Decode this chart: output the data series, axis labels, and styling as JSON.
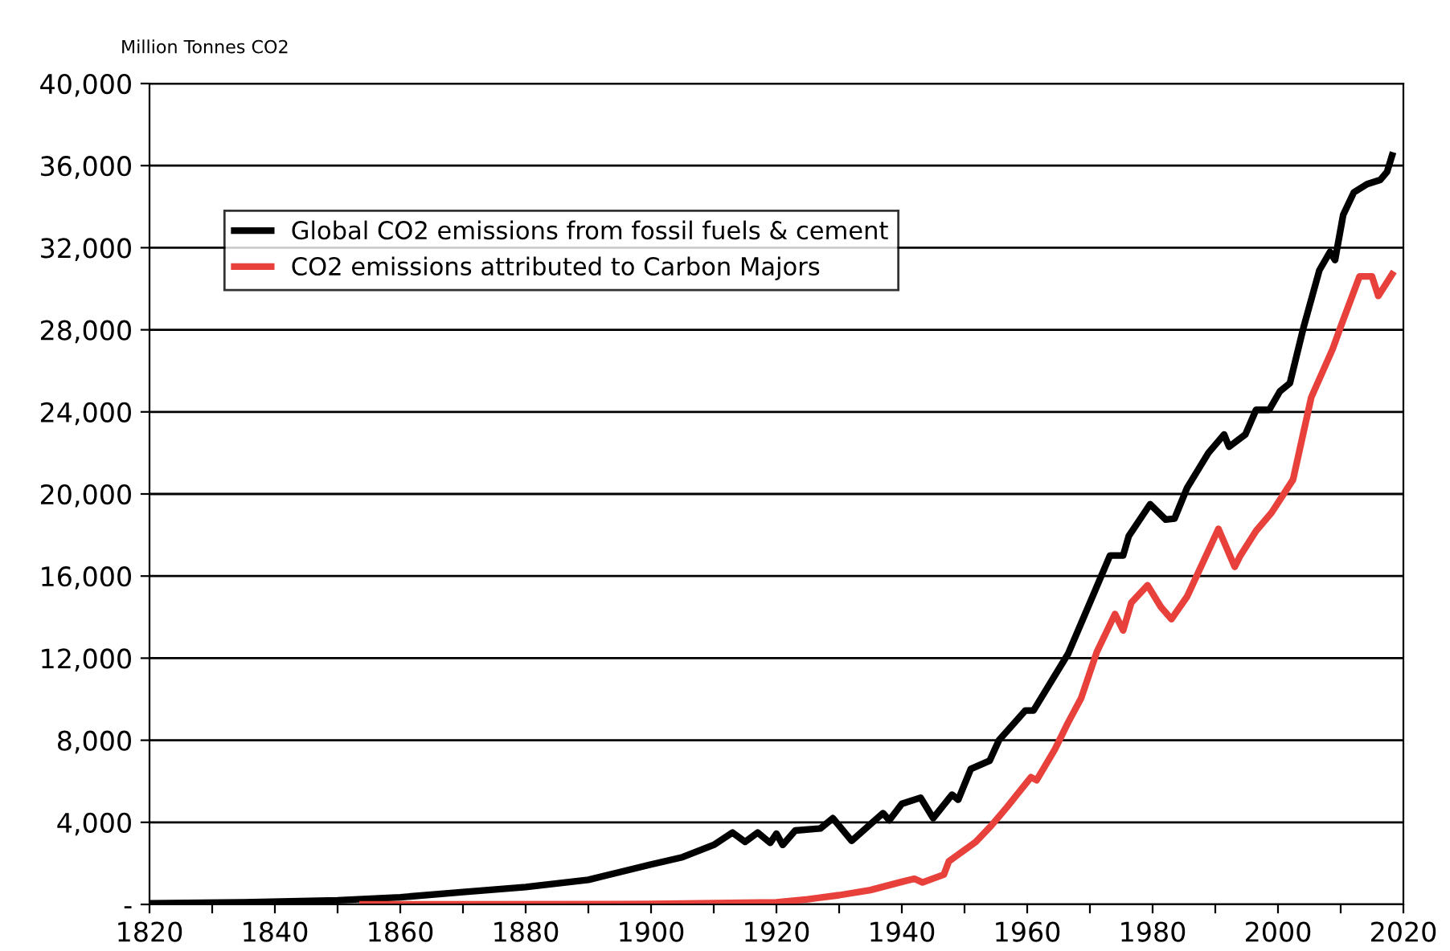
{
  "chart_data": {
    "type": "line",
    "ylabel": "Million Tonnes CO2",
    "xlim": [
      1820,
      2020
    ],
    "ylim": [
      0,
      40000
    ],
    "xticks": [
      1820,
      {
        "value": 1830,
        "label": null
      },
      1840,
      {
        "value": 1850,
        "label": null
      },
      1860,
      {
        "value": 1870,
        "label": null
      },
      1880,
      {
        "value": 1890,
        "label": null
      },
      1900,
      {
        "value": 1910,
        "label": null
      },
      1920,
      {
        "value": 1930,
        "label": null
      },
      1940,
      {
        "value": 1950,
        "label": null
      },
      1960,
      {
        "value": 1970,
        "label": null
      },
      1980,
      {
        "value": 1990,
        "label": null
      },
      2000,
      {
        "value": 2010,
        "label": null
      },
      2020
    ],
    "yticks": [
      {
        "value": 0,
        "label": "-"
      },
      {
        "value": 4000,
        "label": "4,000"
      },
      {
        "value": 8000,
        "label": "8,000"
      },
      {
        "value": 12000,
        "label": "12,000"
      },
      {
        "value": 16000,
        "label": "16,000"
      },
      {
        "value": 20000,
        "label": "20,000"
      },
      {
        "value": 24000,
        "label": "24,000"
      },
      {
        "value": 28000,
        "label": "28,000"
      },
      {
        "value": 32000,
        "label": "32,000"
      },
      {
        "value": 36000,
        "label": "36,000"
      },
      {
        "value": 40000,
        "label": "40,000"
      }
    ],
    "grid": "y",
    "legend": "top left",
    "marker": "none",
    "line_style": "solid",
    "series": [
      {
        "name": "Global CO2 emissions from fossil fuels & cement",
        "color": "#000000",
        "x": [
          1820,
          1835,
          1850,
          1860,
          1870,
          1880,
          1890,
          1900,
          1905,
          1910,
          1913,
          1915,
          1917,
          1919,
          1920,
          1921,
          1923,
          1927,
          1929,
          1932,
          1937,
          1938,
          1940,
          1943,
          1945,
          1948,
          1949,
          1951,
          1954,
          1955.5,
          1959.7,
          1961,
          1966.5,
          1970,
          1973.2,
          1975.3,
          1976.2,
          1979.6,
          1982.1,
          1983.5,
          1985.5,
          1988.9,
          1991.4,
          1992.2,
          1994.8,
          1996.5,
          1998.6,
          2000.3,
          2001.9,
          2004.1,
          2006.6,
          2008.3,
          2009.1,
          2010.4,
          2012.1,
          2014.2,
          2016.3,
          2017.4,
          2018.2
        ],
        "values": [
          50,
          100,
          200,
          350,
          600,
          850,
          1200,
          1950,
          2300,
          2900,
          3500,
          3050,
          3500,
          3000,
          3450,
          2900,
          3600,
          3700,
          4200,
          3100,
          4450,
          4100,
          4900,
          5200,
          4200,
          5350,
          5100,
          6600,
          7000,
          8000,
          9450,
          9450,
          12200,
          14700,
          17000,
          17000,
          17950,
          19500,
          18750,
          18800,
          20300,
          22000,
          22900,
          22300,
          22900,
          24100,
          24100,
          25000,
          25400,
          28150,
          30900,
          31800,
          31400,
          33600,
          34700,
          35100,
          35300,
          35700,
          36500
        ]
      },
      {
        "name": "CO2 emissions attributed to Carbon Majors",
        "color": "#e8413c",
        "x": [
          1854,
          1900,
          1920,
          1925,
          1930,
          1935,
          1940,
          1942,
          1943.3,
          1946.7,
          1947.5,
          1951.8,
          1954.3,
          1956.8,
          1960.6,
          1961.5,
          1964.4,
          1966.5,
          1968.6,
          1971.1,
          1974,
          1975.3,
          1976.6,
          1979.2,
          1981.3,
          1983,
          1985.5,
          1990.5,
          1993.1,
          1994,
          1996.5,
          1999,
          2002.4,
          2005.3,
          2008.7,
          2010,
          2013,
          2015,
          2016,
          2018.2
        ],
        "values": [
          0,
          20,
          100,
          250,
          450,
          700,
          1100,
          1250,
          1070,
          1450,
          2100,
          3050,
          3850,
          4750,
          6200,
          6050,
          7550,
          8850,
          10050,
          12300,
          14150,
          13350,
          14700,
          15550,
          14500,
          13900,
          15000,
          18300,
          16450,
          17000,
          18200,
          19100,
          20700,
          24700,
          27050,
          28150,
          30600,
          30600,
          29650,
          30700
        ]
      }
    ]
  }
}
